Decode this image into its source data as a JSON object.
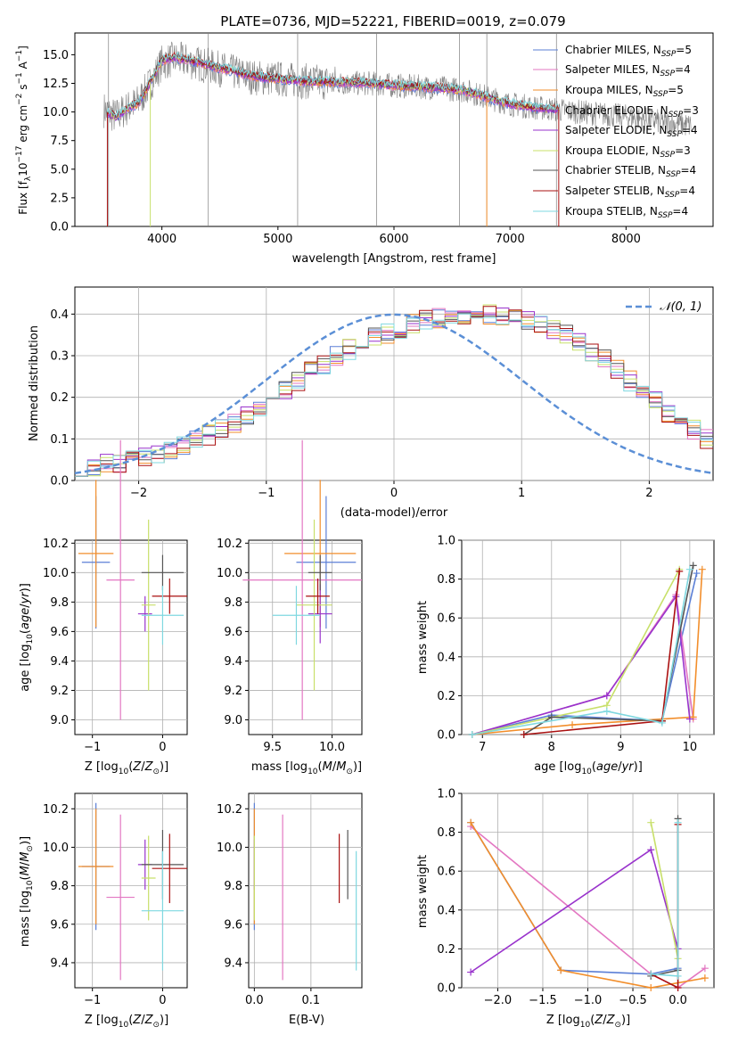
{
  "figure": {
    "title": "PLATE=0736, MJD=52221, FIBERID=0019, z=0.079"
  },
  "colors": {
    "chabrier_miles": "#5b7fd6",
    "salpeter_miles": "#e377c2",
    "kroupa_miles": "#f28e2b",
    "chabrier_elodie": "#9933cc",
    "salpeter_elodie": "#9933cc",
    "kroupa_elodie": "#c8e06a",
    "chabrier_stelib": "#555555",
    "salpeter_stelib": "#aa1111",
    "kroupa_stelib": "#7fd8e0",
    "observed": "#808080",
    "gaussian": "#5b8fd6",
    "grid": "#b0b0b0"
  },
  "chart_data": [
    {
      "panel": "spectrum",
      "type": "line",
      "xlabel": "wavelength [Angstrom, rest frame]",
      "ylabel": "Flux [f_λ 10^-17 erg cm^-2 s^-1 A^-1]",
      "xlim": [
        3250,
        8750
      ],
      "ylim": [
        0,
        16.9
      ],
      "xticks": [
        4000,
        5000,
        6000,
        7000,
        8000
      ],
      "yticks": [
        "0.0",
        "2.5",
        "5.0",
        "7.5",
        "10.0",
        "12.5",
        "15.0"
      ],
      "legend_position": "top-right",
      "model_continuum": {
        "x": [
          3530,
          3600,
          3700,
          3800,
          3900,
          4000,
          4100,
          4200,
          4400,
          4600,
          4800,
          5000,
          5200,
          5400,
          5600,
          5800,
          6000,
          6200,
          6400,
          6600,
          6800,
          7000,
          7200,
          7420
        ],
        "y": [
          10.0,
          9.5,
          10.3,
          10.8,
          12.6,
          14.5,
          14.8,
          14.6,
          14.1,
          13.6,
          13.1,
          12.9,
          12.7,
          12.6,
          12.6,
          12.5,
          12.3,
          12.2,
          12.1,
          11.9,
          11.3,
          10.7,
          10.4,
          10.2
        ]
      },
      "observed_continuum": {
        "x": [
          3500,
          3600,
          3700,
          3800,
          3900,
          4000,
          4100,
          4200,
          4400,
          4600,
          4800,
          5000,
          5200,
          5400,
          5600,
          5800,
          6000,
          6200,
          6400,
          6600,
          6800,
          7000,
          7200,
          7400,
          7600,
          7800,
          8000,
          8200,
          8400,
          8560
        ],
        "y": [
          10.2,
          9.6,
          10.3,
          10.9,
          12.5,
          14.3,
          14.6,
          14.5,
          14.0,
          13.5,
          13.0,
          12.9,
          12.7,
          12.6,
          12.5,
          12.5,
          12.3,
          12.2,
          12.1,
          11.9,
          11.3,
          10.7,
          10.4,
          10.2,
          10.0,
          9.8,
          9.6,
          9.3,
          9.0,
          8.8
        ]
      },
      "series": [
        {
          "name": "Chabrier MILES, N_SSP=5",
          "color_key": "chabrier_miles"
        },
        {
          "name": "Salpeter MILES, N_SSP=4",
          "color_key": "salpeter_miles"
        },
        {
          "name": "Kroupa MILES, N_SSP=5",
          "color_key": "kroupa_miles"
        },
        {
          "name": "Chabrier ELODIE, N_SSP=3",
          "color_key": "chabrier_elodie"
        },
        {
          "name": "Salpeter ELODIE, N_SSP=4",
          "color_key": "salpeter_elodie"
        },
        {
          "name": "Kroupa ELODIE, N_SSP=3",
          "color_key": "kroupa_elodie"
        },
        {
          "name": "Chabrier STELIB, N_SSP=4",
          "color_key": "chabrier_stelib"
        },
        {
          "name": "Salpeter STELIB, N_SSP=4",
          "color_key": "salpeter_stelib"
        },
        {
          "name": "Kroupa STELIB, N_SSP=4",
          "color_key": "kroupa_stelib"
        }
      ]
    },
    {
      "panel": "residual_histogram",
      "type": "line",
      "xlabel": "(data-model)/error",
      "ylabel": "Normed distribution",
      "xlim": [
        -2.5,
        2.5
      ],
      "ylim": [
        0,
        0.465
      ],
      "xticks": [
        "−2",
        "−1",
        "0",
        "1",
        "2"
      ],
      "yticks": [
        "0.0",
        "0.1",
        "0.2",
        "0.3",
        "0.4"
      ],
      "grid": true,
      "legend_position": "top-right",
      "legend": "𝒩(0, 1)",
      "bin_edges_start": -2.5,
      "bin_width": 0.1,
      "histogram_envelope": [
        0.03,
        0.035,
        0.04,
        0.045,
        0.05,
        0.055,
        0.065,
        0.075,
        0.085,
        0.095,
        0.11,
        0.125,
        0.14,
        0.16,
        0.18,
        0.2,
        0.22,
        0.24,
        0.26,
        0.28,
        0.3,
        0.315,
        0.33,
        0.345,
        0.355,
        0.365,
        0.375,
        0.385,
        0.39,
        0.395,
        0.398,
        0.399,
        0.398,
        0.395,
        0.39,
        0.385,
        0.375,
        0.365,
        0.35,
        0.33,
        0.31,
        0.29,
        0.265,
        0.24,
        0.215,
        0.19,
        0.165,
        0.14,
        0.12,
        0.1
      ],
      "series": [
        {
          "name": "𝒩(0, 1)",
          "style": "dashed"
        }
      ]
    },
    {
      "panel": "age_vs_Z",
      "type": "scatter",
      "xlabel": "Z [log10(Z/Z⊙)]",
      "ylabel": "age  [log10(age/yr)]",
      "xlim": [
        -1.25,
        0.35
      ],
      "ylim": [
        8.9,
        10.22
      ],
      "xticks": [
        "−1",
        "0"
      ],
      "yticks": [
        "9.0",
        "9.2",
        "9.4",
        "9.6",
        "9.8",
        "10.0",
        "10.2"
      ],
      "grid": true,
      "points": [
        {
          "x": -0.95,
          "y": 10.07,
          "xerr": 0.2,
          "yerr": 0.45,
          "color_key": "chabrier_miles"
        },
        {
          "x": -0.95,
          "y": 10.13,
          "xerr": 0.25,
          "yerr": 0.5,
          "color_key": "kroupa_miles"
        },
        {
          "x": -0.6,
          "y": 9.95,
          "xerr": 0.2,
          "yerr": 0.95,
          "color_key": "salpeter_miles"
        },
        {
          "x": -0.25,
          "y": 9.72,
          "xerr": 0.1,
          "yerr": 0.12,
          "color_key": "chabrier_elodie"
        },
        {
          "x": -0.2,
          "y": 9.78,
          "xerr": 0.1,
          "yerr": 0.58,
          "color_key": "kroupa_elodie"
        },
        {
          "x": 0.0,
          "y": 10.0,
          "xerr": 0.3,
          "yerr": 0.12,
          "color_key": "chabrier_stelib"
        },
        {
          "x": 0.1,
          "y": 9.84,
          "xerr": 0.25,
          "yerr": 0.12,
          "color_key": "salpeter_stelib"
        },
        {
          "x": 0.0,
          "y": 9.71,
          "xerr": 0.3,
          "yerr": 0.2,
          "color_key": "kroupa_stelib"
        }
      ]
    },
    {
      "panel": "age_vs_mass",
      "type": "scatter",
      "xlabel": "mass [log10(M/M⊙)]",
      "ylabel": "",
      "xlim": [
        9.3,
        10.25
      ],
      "ylim": [
        8.9,
        10.22
      ],
      "xticks": [
        "9.5",
        "10.0"
      ],
      "yticks": [
        "9.0",
        "9.2",
        "9.4",
        "9.6",
        "9.8",
        "10.0",
        "10.2"
      ],
      "grid": true,
      "points": [
        {
          "x": 9.95,
          "y": 10.07,
          "xerr": 0.25,
          "yerr": 0.45,
          "color_key": "chabrier_miles"
        },
        {
          "x": 9.9,
          "y": 10.13,
          "xerr": 0.3,
          "yerr": 0.5,
          "color_key": "kroupa_miles"
        },
        {
          "x": 9.75,
          "y": 9.95,
          "xerr": 0.5,
          "yerr": 0.95,
          "color_key": "salpeter_miles"
        },
        {
          "x": 9.9,
          "y": 9.72,
          "xerr": 0.1,
          "yerr": 0.2,
          "color_key": "chabrier_elodie"
        },
        {
          "x": 9.85,
          "y": 9.78,
          "xerr": 0.15,
          "yerr": 0.58,
          "color_key": "kroupa_elodie"
        },
        {
          "x": 9.9,
          "y": 10.0,
          "xerr": 0.1,
          "yerr": 0.12,
          "color_key": "chabrier_stelib"
        },
        {
          "x": 9.88,
          "y": 9.84,
          "xerr": 0.1,
          "yerr": 0.12,
          "color_key": "salpeter_stelib"
        },
        {
          "x": 9.7,
          "y": 9.71,
          "xerr": 0.2,
          "yerr": 0.2,
          "color_key": "kroupa_stelib"
        }
      ]
    },
    {
      "panel": "mass_weight_vs_age",
      "type": "line",
      "xlabel": "age  [log10(age/yr)]",
      "ylabel": "mass weight",
      "xlim": [
        6.7,
        10.35
      ],
      "ylim": [
        0,
        1.0
      ],
      "xticks": [
        "7",
        "8",
        "9",
        "10"
      ],
      "yticks": [
        "0.0",
        "0.2",
        "0.4",
        "0.6",
        "0.8",
        "1.0"
      ],
      "grid": true,
      "series": [
        {
          "color_key": "chabrier_miles",
          "x": [
            6.85,
            8.0,
            9.6,
            10.1
          ],
          "y": [
            0.0,
            0.1,
            0.07,
            0.83
          ]
        },
        {
          "color_key": "salpeter_miles",
          "x": [
            6.85,
            8.8,
            9.8,
            10.05
          ],
          "y": [
            0.0,
            0.2,
            0.72,
            0.08
          ]
        },
        {
          "color_key": "kroupa_miles",
          "x": [
            6.85,
            8.3,
            10.05,
            10.18
          ],
          "y": [
            0.0,
            0.05,
            0.09,
            0.85
          ]
        },
        {
          "color_key": "chabrier_elodie",
          "x": [
            6.85,
            8.8,
            9.8,
            10.0
          ],
          "y": [
            0.0,
            0.2,
            0.71,
            0.08
          ]
        },
        {
          "color_key": "kroupa_elodie",
          "x": [
            6.85,
            8.8,
            9.85
          ],
          "y": [
            0.0,
            0.15,
            0.85
          ]
        },
        {
          "color_key": "chabrier_stelib",
          "x": [
            7.6,
            8.0,
            9.6,
            10.05
          ],
          "y": [
            0.0,
            0.09,
            0.07,
            0.87
          ]
        },
        {
          "color_key": "salpeter_stelib",
          "x": [
            7.6,
            9.6,
            9.85
          ],
          "y": [
            0.0,
            0.07,
            0.84
          ]
        },
        {
          "color_key": "kroupa_stelib",
          "x": [
            6.85,
            8.8,
            9.6,
            10.0
          ],
          "y": [
            0.0,
            0.12,
            0.06,
            0.85
          ]
        }
      ]
    },
    {
      "panel": "mass_vs_Z",
      "type": "scatter",
      "xlabel": "Z [log10(Z/Z⊙)]",
      "ylabel": "mass [log10(M/M⊙)]",
      "xlim": [
        -1.25,
        0.35
      ],
      "ylim": [
        9.27,
        10.28
      ],
      "xticks": [
        "−1",
        "0"
      ],
      "yticks": [
        "9.4",
        "9.6",
        "9.8",
        "10.0",
        "10.2"
      ],
      "grid": true,
      "points": [
        {
          "x": -0.95,
          "y": 9.9,
          "xerr": 0.2,
          "yerr": 0.33,
          "color_key": "chabrier_miles"
        },
        {
          "x": -0.95,
          "y": 9.9,
          "xerr": 0.25,
          "yerr": 0.3,
          "color_key": "kroupa_miles"
        },
        {
          "x": -0.6,
          "y": 9.74,
          "xerr": 0.2,
          "yerr": 0.43,
          "color_key": "salpeter_miles"
        },
        {
          "x": -0.25,
          "y": 9.91,
          "xerr": 0.1,
          "yerr": 0.13,
          "color_key": "chabrier_elodie"
        },
        {
          "x": -0.2,
          "y": 9.84,
          "xerr": 0.1,
          "yerr": 0.22,
          "color_key": "kroupa_elodie"
        },
        {
          "x": 0.0,
          "y": 9.91,
          "xerr": 0.3,
          "yerr": 0.18,
          "color_key": "chabrier_stelib"
        },
        {
          "x": 0.1,
          "y": 9.89,
          "xerr": 0.25,
          "yerr": 0.18,
          "color_key": "salpeter_stelib"
        },
        {
          "x": 0.0,
          "y": 9.67,
          "xerr": 0.3,
          "yerr": 0.31,
          "color_key": "kroupa_stelib"
        }
      ]
    },
    {
      "panel": "mass_vs_ebv",
      "type": "scatter",
      "xlabel": "E(B-V)",
      "ylabel": "",
      "xlim": [
        -0.01,
        0.19
      ],
      "ylim": [
        9.27,
        10.28
      ],
      "xticks": [
        "0.0",
        "0.1"
      ],
      "yticks": [
        "9.4",
        "9.6",
        "9.8",
        "10.0",
        "10.2"
      ],
      "grid": true,
      "points": [
        {
          "x": 0.0,
          "y": 9.9,
          "yerr": 0.33,
          "color_key": "chabrier_miles"
        },
        {
          "x": 0.0,
          "y": 9.9,
          "yerr": 0.3,
          "color_key": "kroupa_miles"
        },
        {
          "x": 0.05,
          "y": 9.74,
          "yerr": 0.43,
          "color_key": "salpeter_miles"
        },
        {
          "x": 0.0,
          "y": 9.91,
          "yerr": 0.13,
          "color_key": "chabrier_elodie"
        },
        {
          "x": 0.0,
          "y": 9.84,
          "yerr": 0.22,
          "color_key": "kroupa_elodie"
        },
        {
          "x": 0.165,
          "y": 9.91,
          "yerr": 0.18,
          "color_key": "chabrier_stelib"
        },
        {
          "x": 0.15,
          "y": 9.89,
          "yerr": 0.18,
          "color_key": "salpeter_stelib"
        },
        {
          "x": 0.18,
          "y": 9.67,
          "yerr": 0.31,
          "color_key": "kroupa_stelib"
        }
      ]
    },
    {
      "panel": "mass_weight_vs_Z",
      "type": "line",
      "xlabel": "Z [log10(Z/Z⊙)]",
      "ylabel": "mass weight",
      "xlim": [
        -2.4,
        0.4
      ],
      "ylim": [
        0,
        1.0
      ],
      "xticks": [
        "−2.0",
        "−1.5",
        "−1.0",
        "−0.5",
        "0.0"
      ],
      "yticks": [
        "0.0",
        "0.2",
        "0.4",
        "0.6",
        "0.8",
        "1.0"
      ],
      "grid": true,
      "series": [
        {
          "color_key": "chabrier_miles",
          "x": [
            -2.3,
            -1.3,
            -0.3,
            0.0
          ],
          "y": [
            0.85,
            0.09,
            0.07,
            0.1
          ]
        },
        {
          "color_key": "salpeter_miles",
          "x": [
            -2.3,
            -0.3,
            0.0,
            0.3
          ],
          "y": [
            0.83,
            0.07,
            0.0,
            0.1
          ]
        },
        {
          "color_key": "kroupa_miles",
          "x": [
            -2.3,
            -1.3,
            -0.3,
            0.3
          ],
          "y": [
            0.85,
            0.09,
            0.0,
            0.05
          ]
        },
        {
          "color_key": "chabrier_elodie",
          "x": [
            -2.3,
            -0.3,
            0.0
          ],
          "y": [
            0.08,
            0.71,
            0.2
          ]
        },
        {
          "color_key": "kroupa_elodie",
          "x": [
            -0.3,
            0.0
          ],
          "y": [
            0.85,
            0.15
          ]
        },
        {
          "color_key": "chabrier_stelib",
          "x": [
            -0.3,
            0.0,
            0.0
          ],
          "y": [
            0.06,
            0.09,
            0.87
          ]
        },
        {
          "color_key": "salpeter_stelib",
          "x": [
            -0.3,
            0.0,
            0.0
          ],
          "y": [
            0.07,
            0.0,
            0.84
          ]
        },
        {
          "color_key": "kroupa_stelib",
          "x": [
            -0.3,
            0.0,
            0.0
          ],
          "y": [
            0.07,
            0.06,
            0.85
          ]
        }
      ]
    }
  ]
}
